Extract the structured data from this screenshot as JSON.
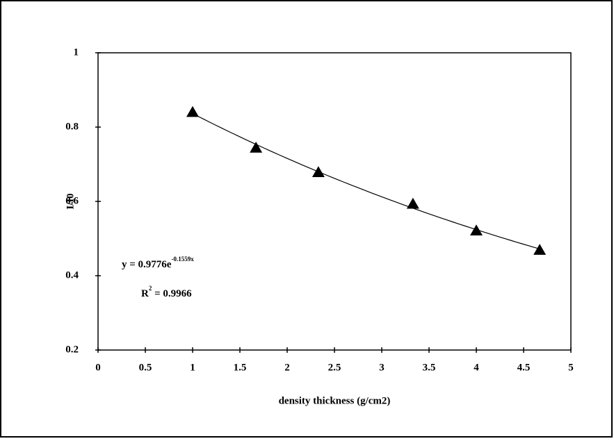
{
  "chart_data": {
    "type": "scatter",
    "x_label": "density thickness (g/cm2)",
    "y_label": "I/I0",
    "x": [
      1,
      1.67,
      2.33,
      3.33,
      4,
      4.67
    ],
    "values": [
      0.84,
      0.744,
      0.678,
      0.593,
      0.521,
      0.469
    ],
    "color": "#000000",
    "marker": "triangle",
    "xlim": [
      0,
      5
    ],
    "xticks": [
      0,
      0.5,
      1,
      1.5,
      2,
      2.5,
      3,
      3.5,
      4,
      4.5,
      5
    ],
    "ylim": [
      0.2,
      1
    ],
    "yticks": [
      0.2,
      0.4,
      0.6,
      0.8,
      1
    ],
    "trendline": {
      "type": "exponential",
      "a": 0.9776,
      "b": -0.1559
    },
    "equation": {
      "text": "y = 0.9776e",
      "exponent": "-0.1559x"
    },
    "r_squared": {
      "text": "R",
      "exponent": "2",
      "value_text": " = 0.9966"
    }
  }
}
